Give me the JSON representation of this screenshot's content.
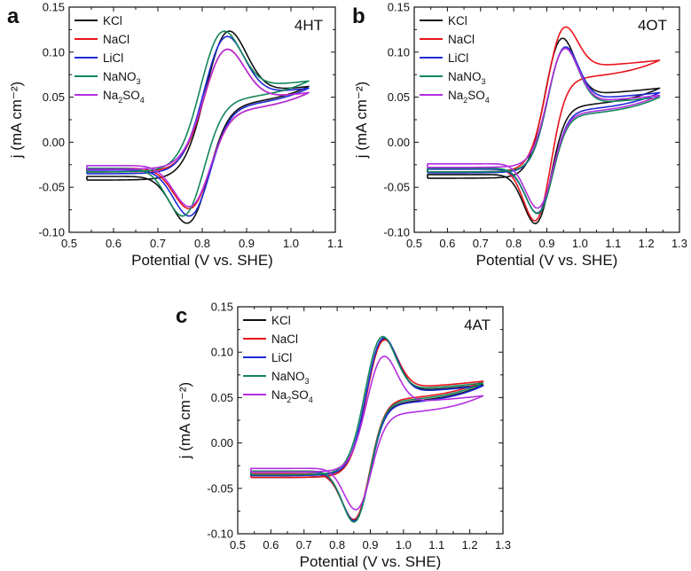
{
  "figure": "cyclic voltammograms",
  "colors": {
    "KCl": "#111111",
    "NaCl": "#e8141c",
    "LiCl": "#1f2bd6",
    "NaNO3": "#13875a",
    "Na2SO4": "#b32ee0"
  },
  "legend": [
    {
      "key": "KCl",
      "base": "KCl",
      "sub": "",
      "tail": ""
    },
    {
      "key": "NaCl",
      "base": "NaCl",
      "sub": "",
      "tail": ""
    },
    {
      "key": "LiCl",
      "base": "LiCl",
      "sub": "",
      "tail": ""
    },
    {
      "key": "NaNO3",
      "base": "NaNO",
      "sub": "3",
      "tail": ""
    },
    {
      "key": "Na2SO4",
      "base": "Na",
      "sub": "2",
      "tail": "SO",
      "sub2": "4"
    }
  ],
  "chart_data": [
    {
      "type": "line",
      "panel": "a",
      "title": "4HT",
      "xlabel": "Potential (V vs. SHE)",
      "ylabel": "j (mA cm⁻²)",
      "xlim": [
        0.5,
        1.1
      ],
      "ylim": [
        -0.1,
        0.15
      ],
      "xticks": [
        "0.5",
        "0.6",
        "0.7",
        "0.8",
        "0.9",
        "1.0",
        "1.1"
      ],
      "yticks": [
        "-0.10",
        "-0.05",
        "0.00",
        "0.05",
        "0.10",
        "0.15"
      ],
      "E_start": 0.54,
      "E_end": 1.04,
      "series": [
        {
          "name": "KCl",
          "Epa": 0.85,
          "ipa": 0.118,
          "Epc": 0.775,
          "ipc": -0.088,
          "i_start": -0.042,
          "i_end": 0.062
        },
        {
          "name": "NaCl",
          "Epa": 0.845,
          "ipa": 0.098,
          "Epc": 0.78,
          "ipc": -0.072,
          "i_start": -0.033,
          "i_end": 0.055
        },
        {
          "name": "LiCl",
          "Epa": 0.845,
          "ipa": 0.112,
          "Epc": 0.78,
          "ipc": -0.08,
          "i_start": -0.035,
          "i_end": 0.06
        },
        {
          "name": "NaNO3",
          "Epa": 0.838,
          "ipa": 0.118,
          "Epc": 0.765,
          "ipc": -0.08,
          "i_start": -0.033,
          "i_end": 0.068
        },
        {
          "name": "Na2SO4",
          "Epa": 0.845,
          "ipa": 0.098,
          "Epc": 0.78,
          "ipc": -0.07,
          "i_start": -0.03,
          "i_end": 0.055
        }
      ]
    },
    {
      "type": "line",
      "panel": "b",
      "title": "4OT",
      "xlabel": "Potential (V vs. SHE)",
      "ylabel": "j (mA cm⁻²)",
      "xlim": [
        0.5,
        1.3
      ],
      "ylim": [
        -0.1,
        0.15
      ],
      "xticks": [
        "0.5",
        "0.6",
        "0.7",
        "0.8",
        "0.9",
        "1.0",
        "1.1",
        "1.2",
        "1.3"
      ],
      "yticks": [
        "-0.10",
        "-0.05",
        "0.00",
        "0.05",
        "0.10",
        "0.15"
      ],
      "E_start": 0.54,
      "E_end": 1.24,
      "series": [
        {
          "name": "KCl",
          "Epa": 0.935,
          "ipa": 0.11,
          "Epc": 0.875,
          "ipc": -0.088,
          "i_start": -0.04,
          "i_end": 0.06
        },
        {
          "name": "NaCl",
          "Epa": 0.94,
          "ipa": 0.12,
          "Epc": 0.875,
          "ipc": -0.084,
          "i_start": -0.033,
          "i_end": 0.091
        },
        {
          "name": "LiCl",
          "Epa": 0.945,
          "ipa": 0.101,
          "Epc": 0.88,
          "ipc": -0.077,
          "i_start": -0.034,
          "i_end": 0.055
        },
        {
          "name": "NaNO3",
          "Epa": 0.945,
          "ipa": 0.1,
          "Epc": 0.88,
          "ipc": -0.078,
          "i_start": -0.033,
          "i_end": 0.05
        },
        {
          "name": "Na2SO4",
          "Epa": 0.945,
          "ipa": 0.1,
          "Epc": 0.88,
          "ipc": -0.072,
          "i_start": -0.028,
          "i_end": 0.052
        }
      ]
    },
    {
      "type": "line",
      "panel": "c",
      "title": "4AT",
      "xlabel": "Potential (V vs. SHE)",
      "ylabel": "j (mA cm⁻²)",
      "xlim": [
        0.5,
        1.3
      ],
      "ylim": [
        -0.1,
        0.15
      ],
      "xticks": [
        "0.5",
        "0.6",
        "0.7",
        "0.8",
        "0.9",
        "1.0",
        "1.1",
        "1.2",
        "1.3"
      ],
      "yticks": [
        "-0.10",
        "-0.05",
        "0.00",
        "0.05",
        "0.10",
        "0.15"
      ],
      "E_start": 0.54,
      "E_end": 1.24,
      "series": [
        {
          "name": "KCl",
          "Epa": 0.93,
          "ipa": 0.11,
          "Epc": 0.86,
          "ipc": -0.083,
          "i_start": -0.038,
          "i_end": 0.064
        },
        {
          "name": "NaCl",
          "Epa": 0.93,
          "ipa": 0.108,
          "Epc": 0.86,
          "ipc": -0.082,
          "i_start": -0.038,
          "i_end": 0.068
        },
        {
          "name": "LiCl",
          "Epa": 0.93,
          "ipa": 0.111,
          "Epc": 0.86,
          "ipc": -0.084,
          "i_start": -0.036,
          "i_end": 0.063
        },
        {
          "name": "NaNO3",
          "Epa": 0.925,
          "ipa": 0.112,
          "Epc": 0.86,
          "ipc": -0.085,
          "i_start": -0.035,
          "i_end": 0.066
        },
        {
          "name": "Na2SO4",
          "Epa": 0.93,
          "ipa": 0.091,
          "Epc": 0.865,
          "ipc": -0.072,
          "i_start": -0.032,
          "i_end": 0.052
        }
      ]
    }
  ]
}
